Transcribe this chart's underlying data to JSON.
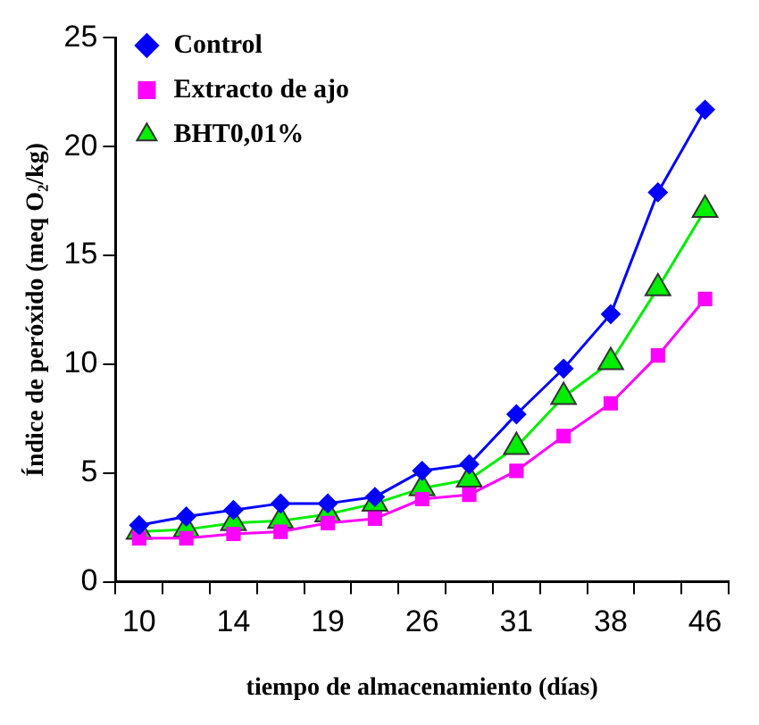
{
  "chart_data": {
    "type": "line",
    "xlabel": "tiempo de almacenamiento (días)",
    "ylabel": "Índice de peróxido (meq O₂/kg)",
    "categories": [
      "10",
      null,
      "14",
      null,
      "19",
      null,
      "26",
      null,
      "31",
      null,
      "38",
      null,
      "46"
    ],
    "series": [
      {
        "name": "Control",
        "color": "#0000ff",
        "marker": "diamond",
        "values": [
          2.6,
          3.0,
          3.3,
          3.6,
          3.6,
          3.9,
          5.1,
          5.4,
          7.7,
          9.8,
          12.3,
          17.9,
          21.7
        ]
      },
      {
        "name": "Extracto de ajo",
        "color": "#ff00ff",
        "marker": "square",
        "values": [
          2.0,
          2.0,
          2.2,
          2.3,
          2.7,
          2.9,
          3.8,
          4.0,
          5.1,
          6.7,
          8.2,
          10.4,
          13.0
        ]
      },
      {
        "name": "BHT0,01%",
        "color": "#00ee00",
        "marker": "triangle",
        "values": [
          2.3,
          2.4,
          2.7,
          2.8,
          3.1,
          3.6,
          4.3,
          4.7,
          6.2,
          8.5,
          10.1,
          13.5,
          17.1
        ]
      }
    ],
    "ylim": [
      0,
      25
    ],
    "yticks": [
      0,
      5,
      10,
      15,
      20,
      25
    ],
    "grid": false,
    "legend": "top left",
    "line_style": "solid"
  }
}
